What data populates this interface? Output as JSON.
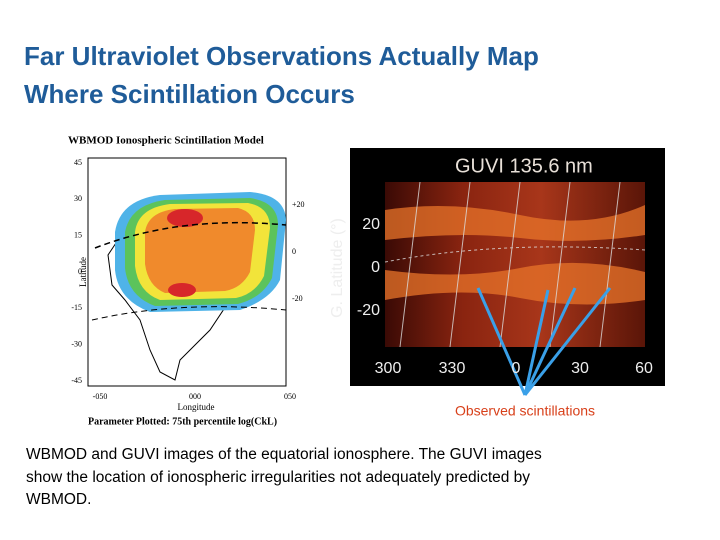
{
  "title": [
    "Far Ultraviolet Observations Actually Map",
    "Where Scintillation Occurs"
  ],
  "left_figure": {
    "title": "WBMOD Ionospheric Scintillation Model",
    "y_label": "Latitude",
    "y_ticks": [
      "45",
      "30",
      "15",
      "0",
      "-15",
      "-30",
      "-45"
    ],
    "y2_ticks": [
      "+20",
      "0",
      "-20"
    ],
    "x_ticks": [
      "-050",
      "000",
      "050"
    ],
    "x_label": "Longitude",
    "footer": "Parameter Plotted: 75th percentile log(CkL)"
  },
  "right_figure": {
    "title": "GUVI 135.6 nm",
    "y_label": "G. Latitude (°)",
    "y_ticks": [
      "20",
      "0",
      "-20"
    ],
    "x_ticks": [
      "300",
      "330",
      "0",
      "30",
      "60"
    ]
  },
  "annotation": "Observed scintillations",
  "caption": [
    "WBMOD and GUVI images of the equatorial ionosphere. The GUVI images",
    "show the location of ionospheric irregularities not adequately predicted by",
    "WBMOD."
  ]
}
